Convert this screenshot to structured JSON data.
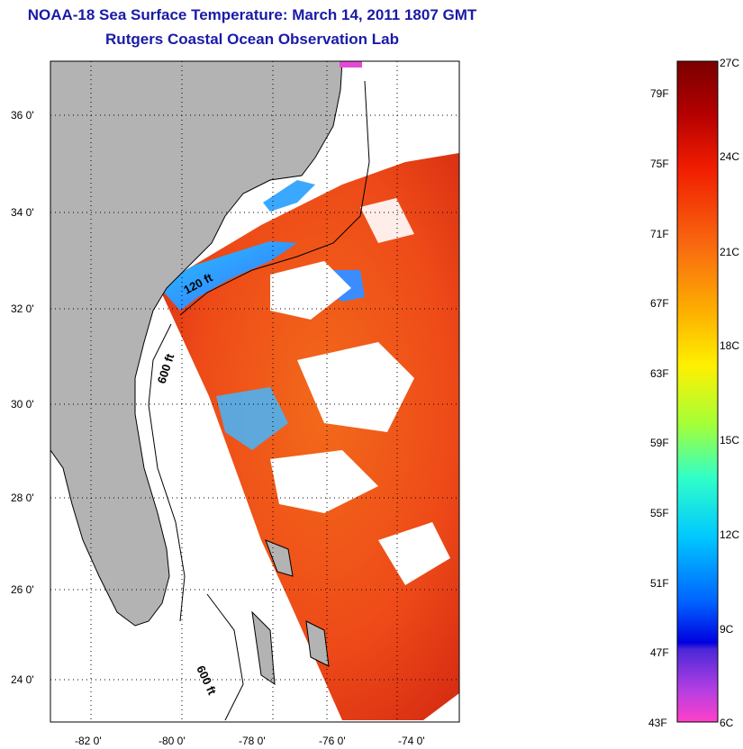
{
  "header": {
    "title": "NOAA-18 Sea Surface Temperature:  March 14, 2011 1807 GMT",
    "subtitle": "Rutgers Coastal Ocean Observation Lab"
  },
  "map": {
    "lat_labels": [
      "36 0'",
      "34 0'",
      "32 0'",
      "30 0'",
      "28 0'",
      "26 0'",
      "24 0'"
    ],
    "lon_labels": [
      "-82 0'",
      "-80 0'",
      "-78 0'",
      "-76 0'",
      "-74 0'"
    ],
    "contour_labels": [
      "120 ft",
      "600 ft",
      "600 ft"
    ],
    "colors": {
      "land": "#b3b3b3",
      "no_data": "#ffffff",
      "warm": "#e8401c",
      "cool": "#2aa0ff"
    }
  },
  "colorbar": {
    "fahrenheit_labels": [
      "79F",
      "75F",
      "71F",
      "67F",
      "63F",
      "59F",
      "55F",
      "51F",
      "47F",
      "43F"
    ],
    "celsius_labels": [
      "27C",
      "24C",
      "21C",
      "18C",
      "15C",
      "12C",
      "9C",
      "6C"
    ],
    "range_f": [
      43,
      81
    ],
    "range_c": [
      6,
      27
    ]
  }
}
